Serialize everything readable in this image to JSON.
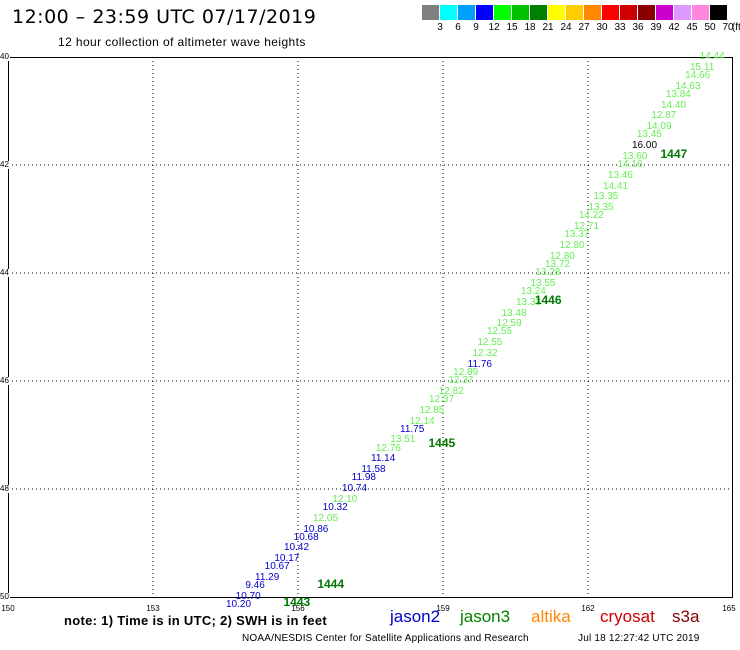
{
  "header": {
    "title": "12:00 – 23:59 UTC 07/17/2019",
    "subtitle": "12 hour collection of altimeter wave heights"
  },
  "legend": {
    "unit": "(ft)",
    "bins": [
      {
        "label": "3",
        "color": "#808080"
      },
      {
        "label": "6",
        "color": "#00ffff"
      },
      {
        "label": "9",
        "color": "#00a0ff"
      },
      {
        "label": "12",
        "color": "#0000ff"
      },
      {
        "label": "15",
        "color": "#00ff00"
      },
      {
        "label": "18",
        "color": "#00c000"
      },
      {
        "label": "21",
        "color": "#008000"
      },
      {
        "label": "24",
        "color": "#ffff00"
      },
      {
        "label": "27",
        "color": "#ffcc00"
      },
      {
        "label": "30",
        "color": "#ff8800"
      },
      {
        "label": "33",
        "color": "#ff0000"
      },
      {
        "label": "36",
        "color": "#cc0000"
      },
      {
        "label": "39",
        "color": "#880000"
      },
      {
        "label": "42",
        "color": "#cc00cc"
      },
      {
        "label": "45",
        "color": "#dd99ff"
      },
      {
        "label": "50",
        "color": "#ff88dd"
      },
      {
        "label": "70",
        "color": "#000000"
      }
    ]
  },
  "map": {
    "lat_labels": [
      "40",
      "42",
      "44",
      "46",
      "48",
      "50"
    ],
    "lon_labels": [
      "150",
      "153",
      "156",
      "159",
      "162",
      "165"
    ],
    "lat_values": [
      -40,
      -42,
      -44,
      -46,
      -48,
      -50
    ],
    "lon_values": [
      150,
      153,
      156,
      159,
      162,
      165
    ],
    "lat_range": [
      -40,
      -50
    ],
    "lon_range": [
      150,
      165
    ],
    "grid": "dotted"
  },
  "observations": [
    {
      "value": "14.44",
      "lon": 164.6,
      "lat": -40.0,
      "sat": "jason3"
    },
    {
      "value": "15.11",
      "lon": 164.4,
      "lat": -40.2,
      "sat": "jason3"
    },
    {
      "value": "14.66",
      "lon": 164.3,
      "lat": -40.35,
      "sat": "jason3"
    },
    {
      "value": "14.63",
      "lon": 164.1,
      "lat": -40.55,
      "sat": "jason3"
    },
    {
      "value": "13.84",
      "lon": 163.9,
      "lat": -40.7,
      "sat": "jason3"
    },
    {
      "value": "14.40",
      "lon": 163.8,
      "lat": -40.9,
      "sat": "jason3"
    },
    {
      "value": "12.87",
      "lon": 163.6,
      "lat": -41.1,
      "sat": "jason3"
    },
    {
      "value": "14.09",
      "lon": 163.5,
      "lat": -41.3,
      "sat": "jason3"
    },
    {
      "value": "13.45",
      "lon": 163.3,
      "lat": -41.45,
      "sat": "jason3"
    },
    {
      "value": "16.00",
      "lon": 163.2,
      "lat": -41.65,
      "sat": "jason3"
    },
    {
      "value": "13.60",
      "lon": 163.0,
      "lat": -41.85,
      "sat": "jason3"
    },
    {
      "value": "14.16",
      "lon": 162.9,
      "lat": -42.0,
      "sat": "jason3"
    },
    {
      "value": "13.46",
      "lon": 162.7,
      "lat": -42.2,
      "sat": "jason3"
    },
    {
      "value": "14.41",
      "lon": 162.6,
      "lat": -42.4,
      "sat": "jason3"
    },
    {
      "value": "13.35",
      "lon": 162.4,
      "lat": -42.6,
      "sat": "jason3"
    },
    {
      "value": "13.35",
      "lon": 162.3,
      "lat": -42.8,
      "sat": "jason3"
    },
    {
      "value": "14.22",
      "lon": 162.1,
      "lat": -42.95,
      "sat": "jason3"
    },
    {
      "value": "12.71",
      "lon": 162.0,
      "lat": -43.15,
      "sat": "jason3"
    },
    {
      "value": "13.37",
      "lon": 161.8,
      "lat": -43.3,
      "sat": "jason3"
    },
    {
      "value": "12.80",
      "lon": 161.7,
      "lat": -43.5,
      "sat": "jason3"
    },
    {
      "value": "12.80",
      "lon": 161.5,
      "lat": -43.7,
      "sat": "jason3"
    },
    {
      "value": "13.72",
      "lon": 161.4,
      "lat": -43.85,
      "sat": "jason3"
    },
    {
      "value": "13.28",
      "lon": 161.2,
      "lat": -44.0,
      "sat": "jason3"
    },
    {
      "value": "13.55",
      "lon": 161.1,
      "lat": -44.2,
      "sat": "jason3"
    },
    {
      "value": "13.24",
      "lon": 160.9,
      "lat": -44.35,
      "sat": "jason3"
    },
    {
      "value": "13.33",
      "lon": 160.8,
      "lat": -44.55,
      "sat": "jason3"
    },
    {
      "value": "13.48",
      "lon": 160.5,
      "lat": -44.75,
      "sat": "jason3"
    },
    {
      "value": "12.59",
      "lon": 160.4,
      "lat": -44.95,
      "sat": "jason3"
    },
    {
      "value": "12.55",
      "lon": 160.2,
      "lat": -45.1,
      "sat": "jason3"
    },
    {
      "value": "12.55",
      "lon": 160.0,
      "lat": -45.3,
      "sat": "jason3"
    },
    {
      "value": "12.32",
      "lon": 159.9,
      "lat": -45.5,
      "sat": "jason3"
    },
    {
      "value": "11.76",
      "lon": 159.8,
      "lat": -45.7,
      "sat": "jason2"
    },
    {
      "value": "12.89",
      "lon": 159.5,
      "lat": -45.85,
      "sat": "jason3"
    },
    {
      "value": "12.37",
      "lon": 159.4,
      "lat": -46.0,
      "sat": "jason3"
    },
    {
      "value": "12.82",
      "lon": 159.2,
      "lat": -46.2,
      "sat": "jason3"
    },
    {
      "value": "12.37",
      "lon": 159.0,
      "lat": -46.35,
      "sat": "jason3"
    },
    {
      "value": "12.85",
      "lon": 158.8,
      "lat": -46.55,
      "sat": "jason3"
    },
    {
      "value": "12.14",
      "lon": 158.6,
      "lat": -46.75,
      "sat": "jason3"
    },
    {
      "value": "11.75",
      "lon": 158.4,
      "lat": -46.9,
      "sat": "jason2"
    },
    {
      "value": "13.51",
      "lon": 158.2,
      "lat": -47.1,
      "sat": "jason3"
    },
    {
      "value": "12.76",
      "lon": 157.9,
      "lat": -47.25,
      "sat": "jason3"
    },
    {
      "value": "11.14",
      "lon": 157.8,
      "lat": -47.45,
      "sat": "jason2"
    },
    {
      "value": "11.58",
      "lon": 157.6,
      "lat": -47.65,
      "sat": "jason2"
    },
    {
      "value": "11.98",
      "lon": 157.4,
      "lat": -47.8,
      "sat": "jason2"
    },
    {
      "value": "10.74",
      "lon": 157.2,
      "lat": -48.0,
      "sat": "jason2"
    },
    {
      "value": "12.10",
      "lon": 157.0,
      "lat": -48.2,
      "sat": "jason3"
    },
    {
      "value": "10.32",
      "lon": 156.8,
      "lat": -48.35,
      "sat": "jason2"
    },
    {
      "value": "12.05",
      "lon": 156.6,
      "lat": -48.55,
      "sat": "jason3"
    },
    {
      "value": "10.86",
      "lon": 156.4,
      "lat": -48.75,
      "sat": "jason2"
    },
    {
      "value": "10.68",
      "lon": 156.2,
      "lat": -48.9,
      "sat": "jason2"
    },
    {
      "value": "10.42",
      "lon": 156.0,
      "lat": -49.1,
      "sat": "jason2"
    },
    {
      "value": "10.17",
      "lon": 155.8,
      "lat": -49.3,
      "sat": "jason2"
    },
    {
      "value": "10.67",
      "lon": 155.6,
      "lat": -49.45,
      "sat": "jason2"
    },
    {
      "value": "11.29",
      "lon": 155.4,
      "lat": -49.65,
      "sat": "jason2"
    },
    {
      "value": "9.46",
      "lon": 155.2,
      "lat": -49.8,
      "sat": "jason2"
    },
    {
      "value": "10.70",
      "lon": 155.0,
      "lat": -50.0,
      "sat": "jason2"
    },
    {
      "value": "10.20",
      "lon": 154.8,
      "lat": -50.15,
      "sat": "jason2"
    }
  ],
  "revolutions": [
    {
      "label": "1447",
      "lon": 163.5,
      "lat": -41.8
    },
    {
      "label": "1446",
      "lon": 160.9,
      "lat": -44.5
    },
    {
      "label": "1445",
      "lon": 158.7,
      "lat": -47.15
    },
    {
      "label": "1444",
      "lon": 156.4,
      "lat": -49.75
    },
    {
      "label": "1443",
      "lon": 155.7,
      "lat": -50.1
    }
  ],
  "footer": {
    "note": "note: 1) Time is in UTC; 2) SWH is in feet",
    "credit": "NOAA/NESDIS Center for Satellite Applications and Research",
    "timestamp": "Jul 18 12:27:42 UTC 2019",
    "satellites": [
      {
        "name": "jason2",
        "color": "#0000cc"
      },
      {
        "name": "jason3",
        "color": "#008000"
      },
      {
        "name": "altika",
        "color": "#ff8800"
      },
      {
        "name": "cryosat",
        "color": "#cc0000"
      },
      {
        "name": "s3a",
        "color": "#880000"
      }
    ]
  },
  "colors": {
    "jason2": "#0000cc",
    "jason3": "#66ee55",
    "revolution": "#007700",
    "highlight": "#000000"
  }
}
